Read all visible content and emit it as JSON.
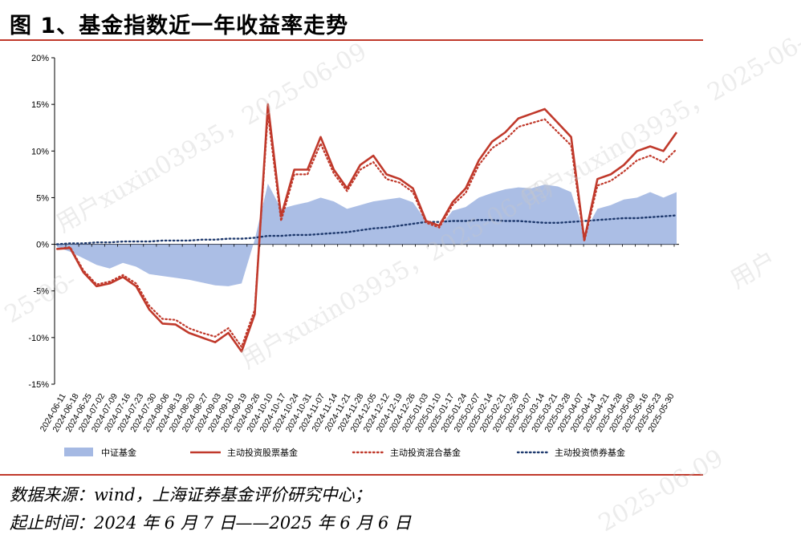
{
  "header": {
    "title": "图 1、基金指数近一年收益率走势"
  },
  "footer": {
    "source": "数据来源：wind，上海证券基金评价研究中心；",
    "period": "起止时间：2024 年 6 月 7 日——2025 年 6 月 6 日"
  },
  "watermark": {
    "w1": "用户xuxin03935，2025-06-09",
    "w2": "用户xuxin03935，2025-06-09",
    "w3": "用户xuxin03935，2025-06-09",
    "w4": "2025-06-09",
    "w5": "用户",
    "w6": "25-06-"
  },
  "colors": {
    "area": "#8fa8dc",
    "equity": "#c0392b",
    "mixed": "#c0392b",
    "bond": "#1f3a6e",
    "axis": "#000000"
  },
  "chart_data": {
    "type": "line",
    "ylim": [
      -15,
      20
    ],
    "yticks": [
      "20%",
      "15%",
      "10%",
      "5%",
      "0%",
      "-5%",
      "-10%",
      "-15%"
    ],
    "ytick_values": [
      20,
      15,
      10,
      5,
      0,
      -5,
      -10,
      -15
    ],
    "xlabels": [
      "2024-06-11",
      "2024-06-18",
      "2024-06-25",
      "2024-07-02",
      "2024-07-09",
      "2024-07-16",
      "2024-07-23",
      "2024-07-30",
      "2024-08-06",
      "2024-08-13",
      "2024-08-20",
      "2024-08-27",
      "2024-09-03",
      "2024-09-10",
      "2024-09-19",
      "2024-09-26",
      "2024-10-10",
      "2024-10-17",
      "2024-10-24",
      "2024-10-31",
      "2024-11-07",
      "2024-11-14",
      "2024-11-21",
      "2024-11-28",
      "2024-12-05",
      "2024-12-12",
      "2024-12-19",
      "2024-12-26",
      "2025-01-03",
      "2025-01-10",
      "2025-01-17",
      "2025-01-24",
      "2025-02-07",
      "2025-02-14",
      "2025-02-21",
      "2025-02-28",
      "2025-03-07",
      "2025-03-14",
      "2025-03-21",
      "2025-03-28",
      "2025-04-07",
      "2025-04-14",
      "2025-04-21",
      "2025-04-28",
      "2025-05-09",
      "2025-05-16",
      "2025-05-23",
      "2025-05-30"
    ],
    "legend": [
      "中证基金",
      "主动投资股票基金",
      "主动投资混合基金",
      "主动投资债券基金"
    ],
    "series": [
      {
        "name": "中证基金",
        "values": [
          -0.3,
          -0.8,
          -1.5,
          -2.2,
          -2.6,
          -2.0,
          -2.4,
          -3.2,
          -3.4,
          -3.6,
          -3.8,
          -4.1,
          -4.4,
          -4.5,
          -4.2,
          0.5,
          6.5,
          3.8,
          4.2,
          4.5,
          5.0,
          4.6,
          3.8,
          4.2,
          4.6,
          4.8,
          5.0,
          4.5,
          2.5,
          1.8,
          3.6,
          4.0,
          5.0,
          5.5,
          5.9,
          6.1,
          6.0,
          6.4,
          6.2,
          5.6,
          1.2,
          3.8,
          4.2,
          4.8,
          5.0,
          5.6,
          5.0,
          5.6
        ]
      },
      {
        "name": "主动投资股票基金",
        "values": [
          -0.5,
          -0.4,
          -3.0,
          -4.5,
          -4.2,
          -3.5,
          -4.5,
          -7.0,
          -8.5,
          -8.6,
          -9.5,
          -10.0,
          -10.5,
          -9.5,
          -11.5,
          -7.5,
          15.0,
          3.0,
          8.0,
          8.0,
          11.5,
          8.0,
          6.0,
          8.5,
          9.5,
          7.5,
          7.0,
          6.0,
          2.5,
          2.0,
          4.5,
          6.0,
          9.0,
          11.0,
          12.0,
          13.5,
          14.0,
          14.5,
          13.0,
          11.5,
          0.5,
          7.0,
          7.5,
          8.5,
          10.0,
          10.5,
          10.0,
          12.0
        ]
      },
      {
        "name": "主动投资混合基金",
        "values": [
          -0.5,
          -0.3,
          -2.8,
          -4.3,
          -4.0,
          -3.3,
          -4.2,
          -6.6,
          -8.0,
          -8.1,
          -9.0,
          -9.5,
          -9.9,
          -9.0,
          -11.0,
          -7.0,
          14.0,
          2.5,
          7.5,
          7.5,
          10.8,
          7.6,
          5.7,
          8.0,
          8.8,
          7.0,
          6.6,
          5.6,
          2.3,
          1.8,
          4.2,
          5.5,
          8.5,
          10.3,
          11.2,
          12.6,
          13.0,
          13.4,
          12.0,
          10.6,
          0.3,
          6.3,
          6.8,
          7.8,
          9.0,
          9.5,
          8.8,
          10.2
        ]
      },
      {
        "name": "主动投资债券基金",
        "values": [
          0.0,
          0.1,
          0.1,
          0.2,
          0.2,
          0.3,
          0.3,
          0.3,
          0.4,
          0.4,
          0.4,
          0.5,
          0.5,
          0.6,
          0.6,
          0.7,
          0.9,
          0.9,
          1.0,
          1.0,
          1.1,
          1.2,
          1.3,
          1.5,
          1.7,
          1.8,
          2.0,
          2.2,
          2.4,
          2.4,
          2.5,
          2.5,
          2.6,
          2.6,
          2.5,
          2.5,
          2.4,
          2.3,
          2.3,
          2.4,
          2.5,
          2.6,
          2.7,
          2.8,
          2.8,
          2.9,
          3.0,
          3.1
        ]
      }
    ]
  }
}
